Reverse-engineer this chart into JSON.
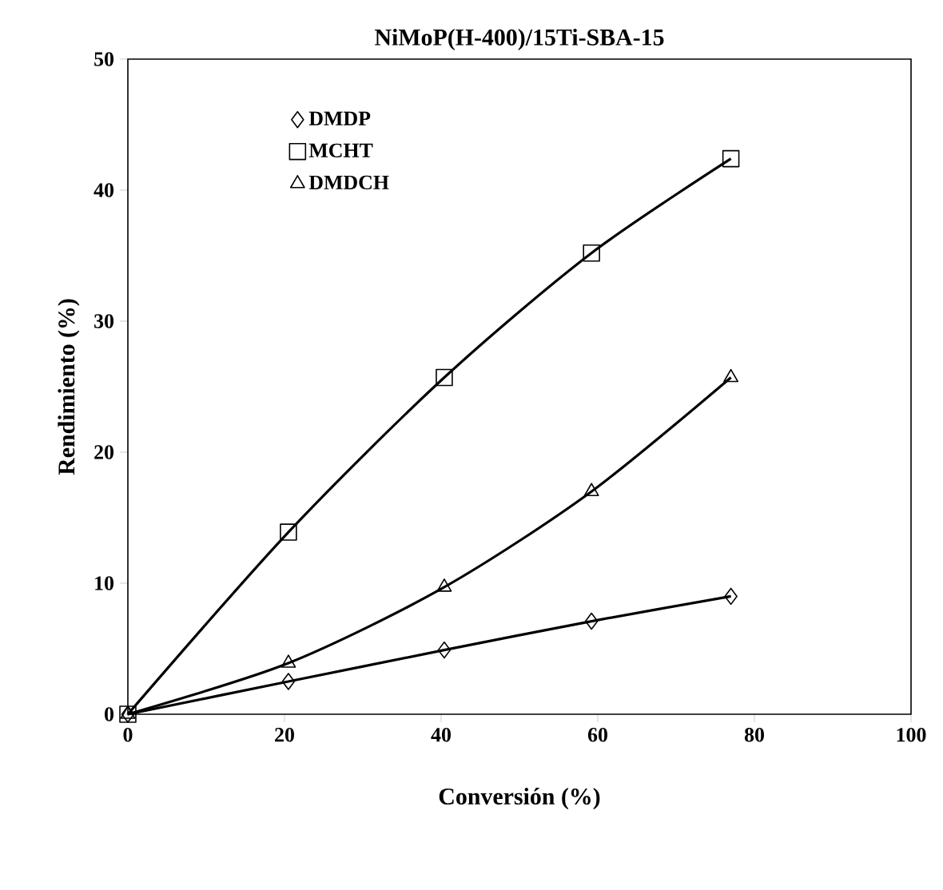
{
  "chart_data": {
    "type": "line",
    "title": "NiMoP(H-400)/15Ti-SBA-15",
    "xlabel": "Conversión (%)",
    "ylabel": "Rendimiento (%)",
    "xlim": [
      0,
      100
    ],
    "ylim": [
      0,
      50
    ],
    "xticks": [
      0,
      20,
      40,
      60,
      80,
      100
    ],
    "yticks": [
      0,
      10,
      20,
      30,
      40,
      50
    ],
    "grid": false,
    "legend": "top left",
    "line_style": "solid",
    "series": [
      {
        "name": "DMDP",
        "color": "#000000",
        "marker": "diamond",
        "x": [
          0,
          20.5,
          40.4,
          59.2,
          77
        ],
        "values": [
          0,
          2.5,
          4.9,
          7.1,
          9.0
        ]
      },
      {
        "name": "MCHT",
        "color": "#000000",
        "marker": "square",
        "x": [
          0,
          20.5,
          40.4,
          59.2,
          77
        ],
        "values": [
          0,
          13.9,
          25.7,
          35.2,
          42.4
        ]
      },
      {
        "name": "DMDCH",
        "color": "#000000",
        "marker": "triangle",
        "x": [
          0,
          20.5,
          40.4,
          59.2,
          77
        ],
        "values": [
          0,
          3.9,
          9.7,
          17.0,
          25.7
        ]
      }
    ]
  }
}
